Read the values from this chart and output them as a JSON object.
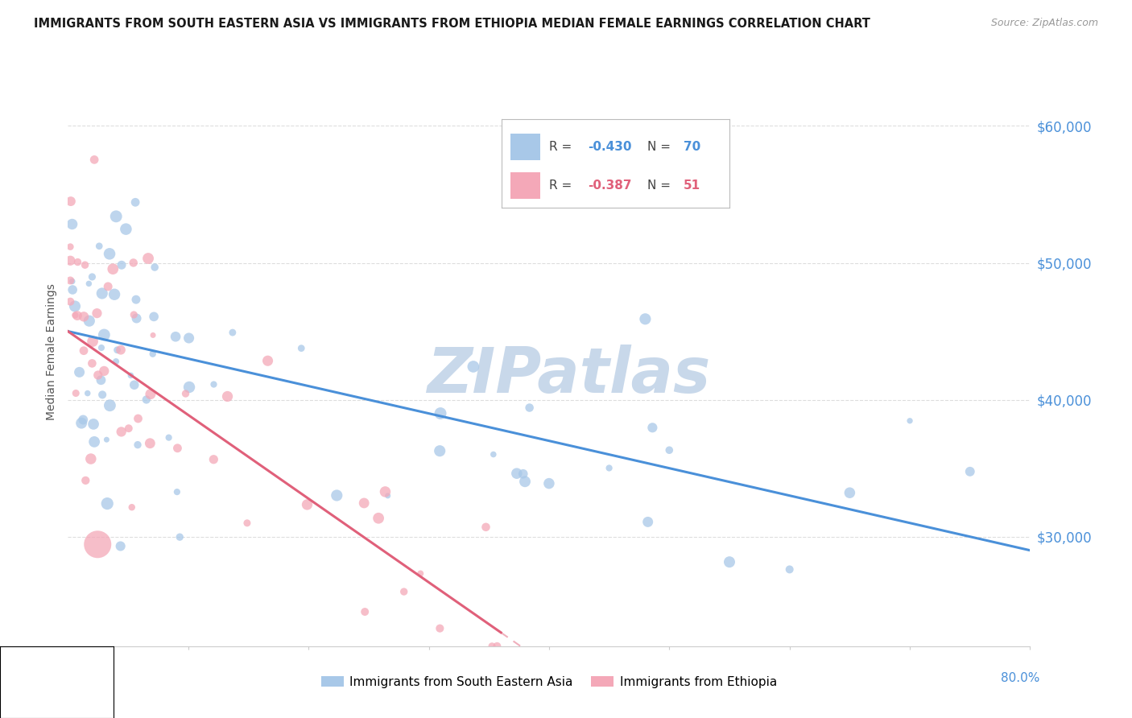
{
  "title": "IMMIGRANTS FROM SOUTH EASTERN ASIA VS IMMIGRANTS FROM ETHIOPIA MEDIAN FEMALE EARNINGS CORRELATION CHART",
  "source": "Source: ZipAtlas.com",
  "ylabel": "Median Female Earnings",
  "watermark": "ZIPatlas",
  "series1_label": "Immigrants from South Eastern Asia",
  "series2_label": "Immigrants from Ethiopia",
  "series1_color": "#a8c8e8",
  "series2_color": "#f4a8b8",
  "line1_color": "#4a90d9",
  "line2_color": "#e0607a",
  "R1": -0.43,
  "N1": 70,
  "R2": -0.387,
  "N2": 51,
  "xmin": 0.0,
  "xmax": 80.0,
  "ymin": 22000,
  "ymax": 65000,
  "ytick_vals": [
    30000,
    40000,
    50000,
    60000
  ],
  "ytick_labels": [
    "$30,000",
    "$40,000",
    "$50,000",
    "$60,000"
  ],
  "title_color": "#1a1a1a",
  "source_color": "#999999",
  "axis_color": "#4a90d9",
  "grid_color": "#dddddd",
  "watermark_color": "#c8d8ea",
  "legend_r1": "-0.430",
  "legend_n1": "70",
  "legend_r2": "-0.387",
  "legend_n2": "51"
}
